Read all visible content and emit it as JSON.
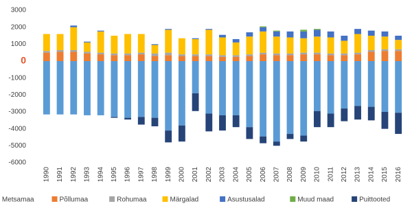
{
  "chart_data": {
    "type": "stacked-bar",
    "categories": [
      "1990",
      "1991",
      "1992",
      "1993",
      "1994",
      "1995",
      "1996",
      "1997",
      "1998",
      "1999",
      "2000",
      "2001",
      "2002",
      "2003",
      "2004",
      "2005",
      "2006",
      "2007",
      "2008",
      "2009",
      "2010",
      "2011",
      "2012",
      "2013",
      "2014",
      "2015",
      "2016"
    ],
    "series": [
      {
        "name": "Metsamaa",
        "color": "#5b9bd5",
        "values": [
          -3150,
          -3150,
          -3150,
          -3200,
          -3200,
          -3300,
          -3350,
          -3300,
          -3350,
          -4100,
          -3800,
          -1900,
          -3100,
          -3200,
          -3200,
          -3900,
          -4450,
          -4750,
          -4300,
          -4400,
          -2950,
          -3100,
          -2800,
          -2650,
          -2700,
          -3000,
          -3050
        ]
      },
      {
        "name": "Põllumaa",
        "color": "#ed7d31",
        "values": [
          500,
          550,
          550,
          450,
          400,
          350,
          350,
          400,
          300,
          350,
          300,
          300,
          300,
          250,
          250,
          300,
          400,
          350,
          350,
          400,
          400,
          350,
          350,
          400,
          550,
          600,
          600
        ]
      },
      {
        "name": "Rohumaa",
        "color": "#a5a5a5",
        "values": [
          100,
          100,
          100,
          100,
          100,
          100,
          100,
          100,
          150,
          150,
          100,
          100,
          100,
          100,
          100,
          100,
          100,
          100,
          100,
          100,
          100,
          100,
          100,
          100,
          100,
          100,
          100
        ]
      },
      {
        "name": "Märgalad",
        "color": "#ffc000",
        "values": [
          1000,
          950,
          1350,
          550,
          1250,
          1050,
          1150,
          1100,
          500,
          1350,
          950,
          900,
          1450,
          1050,
          750,
          1050,
          1250,
          1000,
          950,
          850,
          950,
          950,
          750,
          1100,
          850,
          750,
          550
        ]
      },
      {
        "name": "Asustusalad",
        "color": "#4472c4",
        "values": [
          0,
          0,
          100,
          50,
          50,
          0,
          0,
          0,
          50,
          50,
          0,
          50,
          50,
          150,
          200,
          250,
          250,
          300,
          350,
          400,
          400,
          350,
          300,
          300,
          300,
          300,
          250
        ]
      },
      {
        "name": "Muud maad",
        "color": "#70ad47",
        "values": [
          0,
          0,
          0,
          0,
          0,
          0,
          0,
          0,
          0,
          0,
          0,
          0,
          0,
          0,
          0,
          0,
          50,
          50,
          0,
          100,
          50,
          0,
          0,
          0,
          0,
          0,
          0
        ]
      },
      {
        "name": "Puittooted",
        "color": "#264478",
        "values": [
          0,
          0,
          0,
          0,
          0,
          -50,
          -100,
          -450,
          -500,
          -700,
          -950,
          -1050,
          -1050,
          -900,
          -700,
          -700,
          -400,
          -250,
          -300,
          -350,
          -950,
          -800,
          -750,
          -800,
          -800,
          -1000,
          -1250
        ]
      }
    ],
    "ylim": [
      -6000,
      3000
    ],
    "yticks": [
      -6000,
      -5000,
      -4000,
      -3000,
      -2000,
      -1000,
      0,
      1000,
      2000,
      3000
    ],
    "grid": false,
    "legend": "bottom"
  }
}
